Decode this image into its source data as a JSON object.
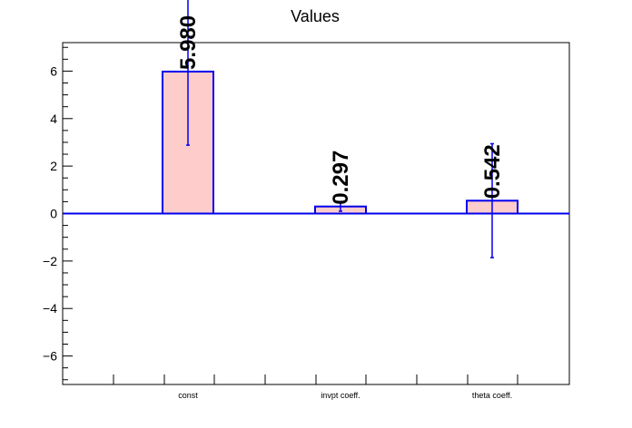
{
  "chart_data": {
    "type": "bar",
    "title": "Values",
    "categories": [
      "const",
      "invpt coeff.",
      "theta coeff."
    ],
    "values": [
      5.98,
      0.297,
      0.542
    ],
    "errors": [
      3.1,
      0.2,
      2.4
    ],
    "data_labels": [
      "5.980",
      "0.297",
      "0.542"
    ],
    "ylim": [
      -7.2,
      7.2
    ],
    "yticks": [
      -6,
      -4,
      -2,
      0,
      2,
      4,
      6
    ],
    "ytick_labels": [
      "−6",
      "−4",
      "−2",
      "0",
      "2",
      "4",
      "6"
    ],
    "grid": false,
    "legend": "none",
    "colors": {
      "bar_fill": "#ffcccc",
      "bar_edge": "#0000ee",
      "zero_line": "#0000ee",
      "axis": "#000000"
    }
  }
}
